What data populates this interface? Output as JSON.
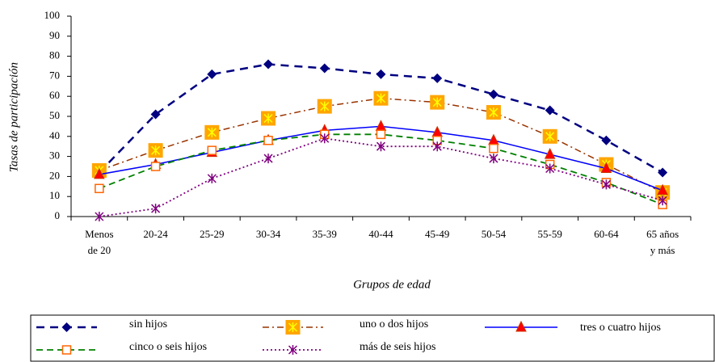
{
  "chart_data": {
    "type": "line",
    "y_label": "Tasas de participación",
    "x_label": "Grupos de edad",
    "categories": [
      "Menos de 20",
      "20-24",
      "25-29",
      "30-34",
      "35-39",
      "40-44",
      "45-49",
      "50-54",
      "55-59",
      "60-64",
      "65 años y más"
    ],
    "ylim": [
      0,
      100
    ],
    "yticks": [
      0,
      10,
      20,
      30,
      40,
      50,
      60,
      70,
      80,
      90,
      100
    ],
    "series": [
      {
        "name": "sin hijos",
        "color": "#000080",
        "marker": "diamond",
        "dash": "10,7",
        "width": 2.5,
        "values": [
          22,
          51,
          71,
          76,
          74,
          71,
          69,
          61,
          53,
          38,
          22
        ]
      },
      {
        "name": "uno o dos hijos",
        "color": "#993300",
        "marker": "square-star",
        "dash": "8,4,2,4",
        "width": 1.5,
        "values": [
          23,
          33,
          42,
          49,
          55,
          59,
          57,
          52,
          40,
          26,
          12
        ]
      },
      {
        "name": "tres o cuatro hijos",
        "color": "#0000ff",
        "marker": "triangle",
        "dash": "",
        "width": 1.5,
        "values": [
          21,
          26,
          32,
          38,
          43,
          45,
          42,
          38,
          31,
          24,
          13
        ]
      },
      {
        "name": "cinco o seis hijos",
        "color": "#008000",
        "marker": "open-square",
        "dash": "8,5",
        "width": 1.8,
        "values": [
          14,
          25,
          33,
          38,
          41,
          41,
          38,
          34,
          26,
          17,
          6
        ]
      },
      {
        "name": "más de seis hijos",
        "color": "#800080",
        "marker": "star",
        "dash": "2,3",
        "width": 1.8,
        "values": [
          0,
          4,
          19,
          29,
          39,
          35,
          35,
          29,
          24,
          16,
          8
        ]
      }
    ]
  }
}
